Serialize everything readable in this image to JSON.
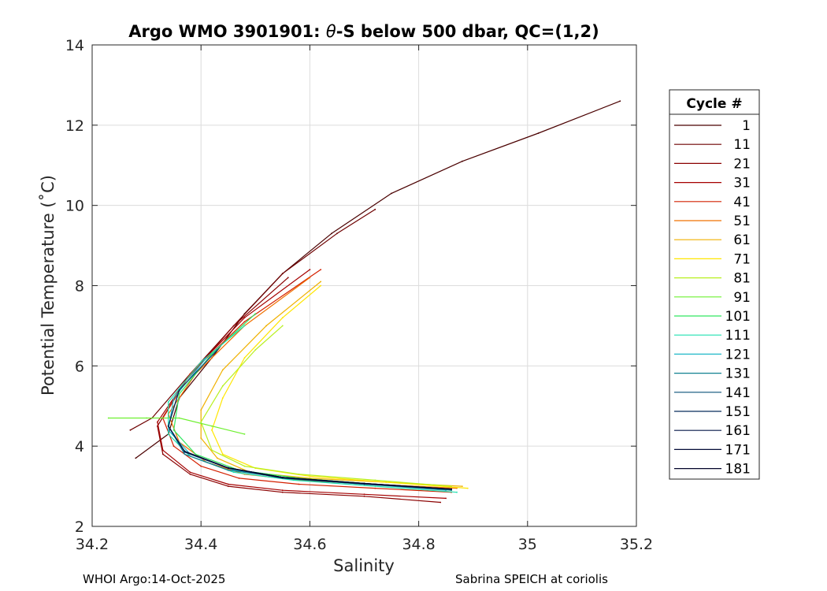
{
  "chart_data": {
    "type": "line",
    "title_prefix": "Argo WMO 3901901: ",
    "title_theta": "θ",
    "title_suffix": "-S below 500 dbar,  QC=(1,2)",
    "xlabel": "Salinity",
    "ylabel": "Potential Temperature (˚C)",
    "xlim": [
      34.2,
      35.2
    ],
    "ylim": [
      2,
      14
    ],
    "xticks": [
      "34.2",
      "34.4",
      "34.6",
      "34.8",
      "35",
      "35.2"
    ],
    "yticks": [
      "2",
      "4",
      "6",
      "8",
      "10",
      "12",
      "14"
    ],
    "grid": true,
    "legend_title": "Cycle #",
    "legend_position": "right",
    "series": [
      {
        "name": "1",
        "color": "#4a0000",
        "points": [
          [
            34.28,
            3.7
          ],
          [
            34.34,
            4.3
          ],
          [
            34.36,
            5.2
          ],
          [
            34.42,
            6.2
          ],
          [
            34.48,
            7.3
          ],
          [
            34.55,
            8.3
          ],
          [
            34.64,
            9.3
          ],
          [
            34.75,
            10.3
          ],
          [
            34.88,
            11.1
          ],
          [
            35.02,
            11.8
          ],
          [
            35.17,
            12.6
          ]
        ]
      },
      {
        "name": "11",
        "color": "#6e0000",
        "points": [
          [
            34.27,
            4.4
          ],
          [
            34.31,
            4.7
          ],
          [
            34.38,
            5.8
          ],
          [
            34.46,
            7.0
          ],
          [
            34.55,
            8.3
          ],
          [
            34.65,
            9.3
          ],
          [
            34.72,
            9.9
          ]
        ]
      },
      {
        "name": "21",
        "color": "#8b0000",
        "points": [
          [
            34.84,
            2.6
          ],
          [
            34.7,
            2.75
          ],
          [
            34.55,
            2.85
          ],
          [
            34.45,
            3.0
          ],
          [
            34.38,
            3.3
          ],
          [
            34.33,
            3.8
          ],
          [
            34.32,
            4.5
          ],
          [
            34.37,
            5.6
          ],
          [
            34.46,
            7.0
          ],
          [
            34.56,
            8.2
          ]
        ]
      },
      {
        "name": "31",
        "color": "#a50000",
        "points": [
          [
            34.85,
            2.7
          ],
          [
            34.7,
            2.8
          ],
          [
            34.55,
            2.9
          ],
          [
            34.45,
            3.05
          ],
          [
            34.38,
            3.35
          ],
          [
            34.33,
            3.9
          ],
          [
            34.32,
            4.6
          ],
          [
            34.38,
            5.8
          ],
          [
            34.48,
            7.2
          ],
          [
            34.6,
            8.4
          ]
        ]
      },
      {
        "name": "41",
        "color": "#d42000",
        "points": [
          [
            34.86,
            2.85
          ],
          [
            34.72,
            2.95
          ],
          [
            34.58,
            3.05
          ],
          [
            34.47,
            3.2
          ],
          [
            34.4,
            3.5
          ],
          [
            34.35,
            4.0
          ],
          [
            34.33,
            4.7
          ],
          [
            34.38,
            5.8
          ],
          [
            34.48,
            7.1
          ],
          [
            34.62,
            8.4
          ]
        ]
      },
      {
        "name": "51",
        "color": "#f07000",
        "points": [
          [
            34.87,
            2.95
          ],
          [
            34.72,
            3.05
          ],
          [
            34.58,
            3.15
          ],
          [
            34.48,
            3.3
          ],
          [
            34.41,
            3.6
          ],
          [
            34.36,
            4.1
          ],
          [
            34.34,
            4.8
          ],
          [
            34.39,
            5.8
          ],
          [
            34.48,
            7.0
          ],
          [
            34.6,
            8.2
          ]
        ]
      },
      {
        "name": "61",
        "color": "#f0b000",
        "points": [
          [
            34.88,
            3.0
          ],
          [
            34.74,
            3.1
          ],
          [
            34.6,
            3.2
          ],
          [
            34.49,
            3.35
          ],
          [
            34.43,
            3.7
          ],
          [
            34.4,
            4.2
          ],
          [
            34.4,
            4.9
          ],
          [
            34.44,
            5.9
          ],
          [
            34.52,
            7.0
          ],
          [
            34.62,
            8.1
          ]
        ]
      },
      {
        "name": "71",
        "color": "#ffe600",
        "points": [
          [
            34.89,
            2.95
          ],
          [
            34.74,
            3.1
          ],
          [
            34.6,
            3.25
          ],
          [
            34.5,
            3.45
          ],
          [
            34.44,
            3.8
          ],
          [
            34.42,
            4.4
          ],
          [
            34.44,
            5.2
          ],
          [
            34.48,
            6.2
          ],
          [
            34.55,
            7.2
          ],
          [
            34.62,
            8.0
          ]
        ]
      },
      {
        "name": "81",
        "color": "#b8f020",
        "points": [
          [
            34.86,
            3.0
          ],
          [
            34.72,
            3.15
          ],
          [
            34.58,
            3.3
          ],
          [
            34.48,
            3.5
          ],
          [
            34.42,
            3.9
          ],
          [
            34.4,
            4.6
          ],
          [
            34.44,
            5.5
          ],
          [
            34.5,
            6.4
          ],
          [
            34.55,
            7.0
          ]
        ]
      },
      {
        "name": "91",
        "color": "#6ef030",
        "points": [
          [
            34.23,
            4.7
          ],
          [
            34.3,
            4.7
          ],
          [
            34.36,
            4.7
          ],
          [
            34.42,
            4.5
          ],
          [
            34.48,
            4.3
          ]
        ]
      },
      {
        "name": "101",
        "color": "#30e860",
        "points": [
          [
            34.86,
            2.9
          ],
          [
            34.72,
            3.05
          ],
          [
            34.58,
            3.2
          ],
          [
            34.47,
            3.4
          ],
          [
            34.39,
            3.8
          ],
          [
            34.35,
            4.4
          ],
          [
            34.36,
            5.3
          ],
          [
            34.42,
            6.3
          ],
          [
            34.5,
            7.3
          ]
        ]
      },
      {
        "name": "111",
        "color": "#20e0b0",
        "points": [
          [
            34.87,
            2.85
          ],
          [
            34.72,
            3.0
          ],
          [
            34.57,
            3.15
          ],
          [
            34.46,
            3.35
          ],
          [
            34.38,
            3.75
          ],
          [
            34.34,
            4.3
          ],
          [
            34.34,
            5.1
          ],
          [
            34.4,
            6.1
          ],
          [
            34.48,
            7.0
          ]
        ]
      },
      {
        "name": "121",
        "color": "#20b8c8",
        "points": [
          [
            34.85,
            2.9
          ],
          [
            34.7,
            3.05
          ],
          [
            34.56,
            3.2
          ],
          [
            34.46,
            3.4
          ],
          [
            34.38,
            3.8
          ],
          [
            34.34,
            4.4
          ],
          [
            34.35,
            5.2
          ],
          [
            34.41,
            6.2
          ]
        ]
      },
      {
        "name": "131",
        "color": "#108090",
        "points": [
          [
            34.86,
            2.9
          ],
          [
            34.71,
            3.05
          ],
          [
            34.56,
            3.2
          ],
          [
            34.45,
            3.4
          ],
          [
            34.37,
            3.8
          ],
          [
            34.34,
            4.5
          ],
          [
            34.36,
            5.4
          ],
          [
            34.43,
            6.4
          ]
        ]
      },
      {
        "name": "141",
        "color": "#0a5078",
        "points": [
          [
            34.86,
            2.92
          ],
          [
            34.7,
            3.05
          ],
          [
            34.55,
            3.2
          ],
          [
            34.45,
            3.45
          ],
          [
            34.37,
            3.85
          ],
          [
            34.34,
            4.5
          ],
          [
            34.36,
            5.4
          ],
          [
            34.43,
            6.4
          ]
        ]
      },
      {
        "name": "151",
        "color": "#082c5c",
        "points": [
          [
            34.86,
            2.92
          ],
          [
            34.7,
            3.06
          ],
          [
            34.55,
            3.21
          ],
          [
            34.45,
            3.45
          ],
          [
            34.37,
            3.86
          ],
          [
            34.34,
            4.5
          ],
          [
            34.36,
            5.4
          ]
        ]
      },
      {
        "name": "161",
        "color": "#061848",
        "points": [
          [
            34.86,
            2.93
          ],
          [
            34.7,
            3.07
          ],
          [
            34.55,
            3.22
          ],
          [
            34.45,
            3.46
          ],
          [
            34.37,
            3.87
          ],
          [
            34.34,
            4.5
          ]
        ]
      },
      {
        "name": "171",
        "color": "#040c38",
        "points": [
          [
            34.86,
            2.93
          ],
          [
            34.7,
            3.07
          ],
          [
            34.55,
            3.22
          ],
          [
            34.45,
            3.46
          ],
          [
            34.37,
            3.87
          ]
        ]
      },
      {
        "name": "181",
        "color": "#02042a",
        "points": [
          [
            34.86,
            2.93
          ],
          [
            34.7,
            3.07
          ],
          [
            34.55,
            3.22
          ],
          [
            34.45,
            3.46
          ]
        ]
      }
    ]
  },
  "footer": {
    "left": "WHOI Argo:14-Oct-2025",
    "right": "Sabrina SPEICH at coriolis"
  }
}
